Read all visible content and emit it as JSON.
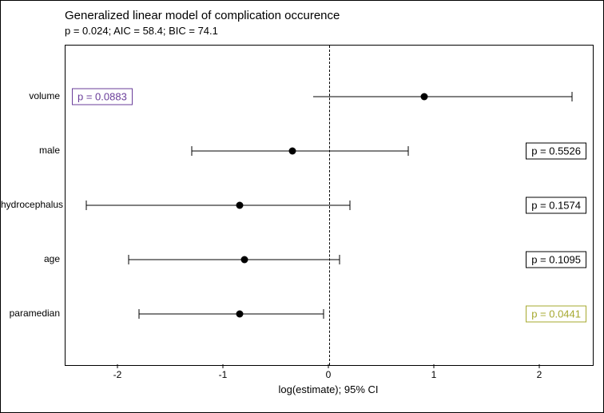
{
  "chart": {
    "type": "forest-plot",
    "title": "Generalized linear model of complication occurence",
    "subtitle": "p = 0.024; AIC = 58.4; BIC = 74.1",
    "xlabel": "log(estimate); 95% CI",
    "xlim": [
      -2.5,
      2.5
    ],
    "xticks": [
      -2,
      -1,
      0,
      1,
      2
    ],
    "ref_x": 0,
    "background_color": "#ffffff",
    "axis_color": "#000000",
    "point_color": "#000000",
    "text_color": "#000000",
    "title_fontsize": 15,
    "subtitle_fontsize": 13,
    "label_fontsize": 12,
    "rows": [
      {
        "label": "volume",
        "estimate": 0.9,
        "ci_low": -0.15,
        "ci_high": 2.3,
        "p_text": "p  =  0.0883",
        "p_color": "#6a3d9a",
        "p_side": "left",
        "whisker_left": false,
        "whisker_right": true
      },
      {
        "label": "male",
        "estimate": -0.35,
        "ci_low": -1.3,
        "ci_high": 0.75,
        "p_text": "p  =  0.5526",
        "p_color": "#000000",
        "p_side": "right",
        "whisker_left": true,
        "whisker_right": true
      },
      {
        "label": "hydrocephalus",
        "estimate": -0.85,
        "ci_low": -2.3,
        "ci_high": 0.2,
        "p_text": "p  =  0.1574",
        "p_color": "#000000",
        "p_side": "right",
        "whisker_left": true,
        "whisker_right": true
      },
      {
        "label": "age",
        "estimate": -0.8,
        "ci_low": -1.9,
        "ci_high": 0.1,
        "p_text": "p  =  0.1095",
        "p_color": "#000000",
        "p_side": "right",
        "whisker_left": true,
        "whisker_right": true
      },
      {
        "label": "paramedian",
        "estimate": -0.85,
        "ci_low": -1.8,
        "ci_high": -0.05,
        "p_text": "p  =  0.0441",
        "p_color": "#a6a82e",
        "p_side": "right",
        "whisker_left": true,
        "whisker_right": true
      }
    ]
  }
}
